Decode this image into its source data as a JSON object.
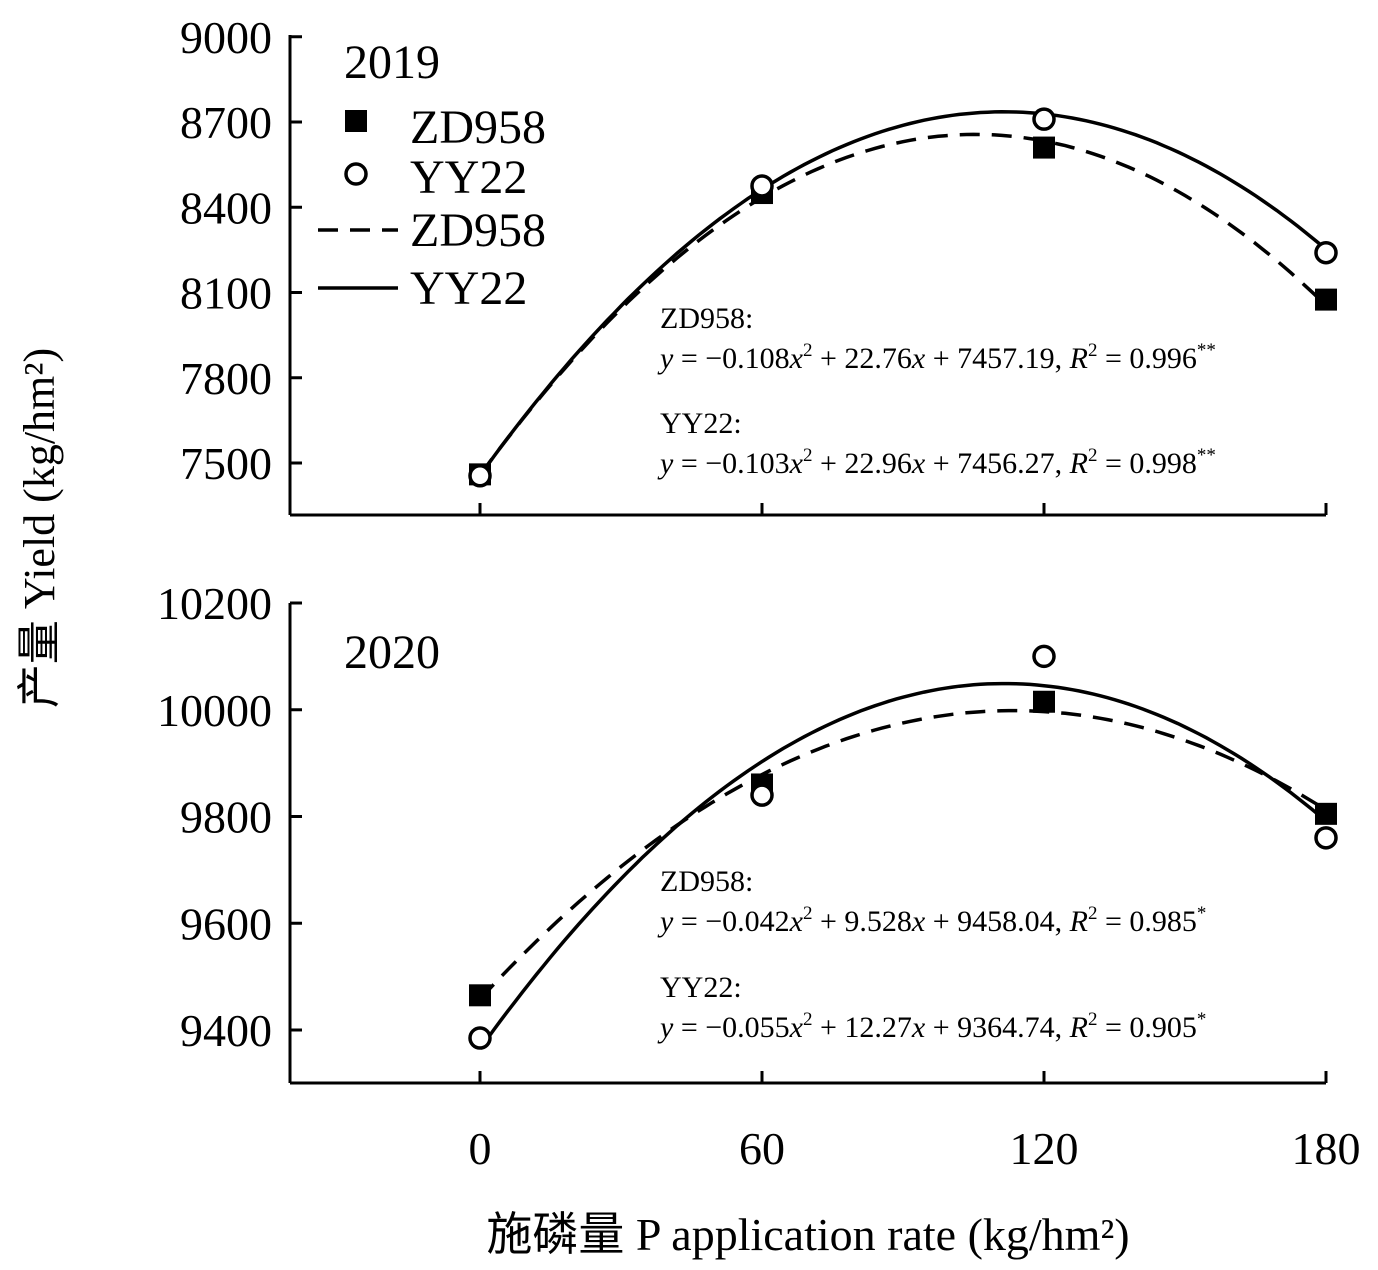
{
  "colors": {
    "ink": "#000000",
    "background": "#ffffff"
  },
  "ylabel": "产量 Yield (kg/hm²)",
  "xlabel": "施磷量 P application rate (kg/hm²)",
  "legend": {
    "markers": [
      {
        "symbol": "filled-square",
        "label": "ZD958"
      },
      {
        "symbol": "open-circle",
        "label": "YY22"
      }
    ],
    "lines": [
      {
        "style": "dashed",
        "label": "ZD958"
      },
      {
        "style": "solid",
        "label": "YY22"
      }
    ]
  },
  "chart_data": [
    {
      "type": "scatter",
      "panel_label": "2019",
      "x": [
        0,
        60,
        120,
        180
      ],
      "xticks": [
        0,
        60,
        120,
        180
      ],
      "xlim": [
        -40,
        180
      ],
      "yticks": [
        7500,
        7800,
        8100,
        8400,
        8700,
        9000
      ],
      "ylim": [
        7350,
        9050
      ],
      "series": [
        {
          "name": "ZD958",
          "marker": "filled-square",
          "line": "dashed",
          "values": [
            7460,
            8450,
            8610,
            8075
          ],
          "fit": {
            "a": -0.108,
            "b": 22.76,
            "c": 7457.19
          },
          "equation_name": "ZD958:",
          "equation": {
            "lhs": "y",
            "eq": " = −",
            "a": "0.108",
            "x": "x",
            "b": " + 22.76",
            "c": " + 7457.19, ",
            "r": "R",
            "r2": " = 0.996",
            "sig": "**"
          }
        },
        {
          "name": "YY22",
          "marker": "open-circle",
          "line": "solid",
          "values": [
            7455,
            8475,
            8710,
            8240
          ],
          "fit": {
            "a": -0.103,
            "b": 22.96,
            "c": 7456.27
          },
          "equation_name": "YY22:",
          "equation": {
            "lhs": "y",
            "eq": " = −",
            "a": "0.103",
            "x": "x",
            "b": " + 22.96",
            "c": " + 7456.27, ",
            "r": "R",
            "r2": " = 0.998",
            "sig": "**"
          }
        }
      ]
    },
    {
      "type": "scatter",
      "panel_label": "2020",
      "x": [
        0,
        60,
        120,
        180
      ],
      "xticks": [
        0,
        60,
        120,
        180
      ],
      "xlim": [
        -40,
        180
      ],
      "yticks": [
        9400,
        9600,
        9800,
        10000,
        10200
      ],
      "ylim": [
        9300,
        10200
      ],
      "series": [
        {
          "name": "ZD958",
          "marker": "filled-square",
          "line": "dashed",
          "values": [
            9465,
            9860,
            10015,
            9805
          ],
          "fit": {
            "a": -0.042,
            "b": 9.528,
            "c": 9458.04
          },
          "equation_name": "ZD958:",
          "equation": {
            "lhs": "y",
            "eq": " = −",
            "a": "0.042",
            "x": "x",
            "b": " + 9.528",
            "c": " + 9458.04, ",
            "r": "R",
            "r2": " = 0.985",
            "sig": "*"
          }
        },
        {
          "name": "YY22",
          "marker": "open-circle",
          "line": "solid",
          "values": [
            9385,
            9840,
            10100,
            9760
          ],
          "fit": {
            "a": -0.055,
            "b": 12.27,
            "c": 9364.74
          },
          "equation_name": "YY22:",
          "equation": {
            "lhs": "y",
            "eq": " = −",
            "a": "0.055",
            "x": "x",
            "b": " + 12.27",
            "c": " + 9364.74, ",
            "r": "R",
            "r2": " = 0.905",
            "sig": "*"
          }
        }
      ]
    }
  ]
}
